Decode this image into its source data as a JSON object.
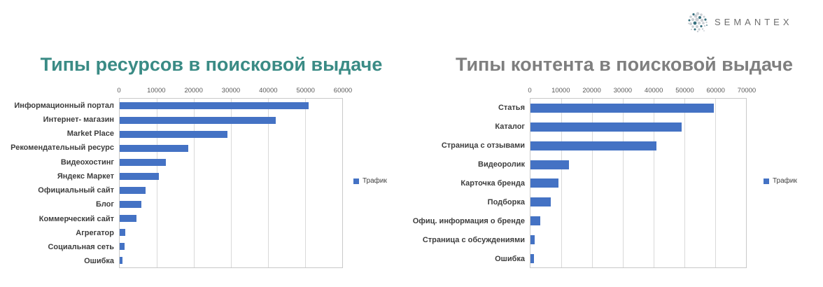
{
  "logo": {
    "text": "SEMANTEX",
    "icon": "dotted-sphere-icon"
  },
  "legend_label": "Трафик",
  "chart_data": [
    {
      "type": "bar",
      "orientation": "horizontal",
      "title": "Типы ресурсов в поисковой выдаче",
      "title_color": "#3a8b85",
      "categories": [
        "Информационный портал",
        "Интернет- магазин",
        "Market Place",
        "Рекомендательный ресурс",
        "Видеохостинг",
        "Яндекс Маркет",
        "Официальный сайт",
        "Блог",
        "Коммерческий сайт",
        "Агрегатор",
        "Социальная сеть",
        "Ошибка"
      ],
      "series": [
        {
          "name": "Трафик",
          "values": [
            51000,
            42000,
            29000,
            18500,
            12500,
            10500,
            7000,
            5800,
            4600,
            1600,
            1400,
            700
          ]
        }
      ],
      "xlim": [
        0,
        60000
      ],
      "xticks": [
        0,
        10000,
        20000,
        30000,
        40000,
        50000,
        60000
      ],
      "bar_color": "#4472c4",
      "grid": true,
      "legend_position": "right"
    },
    {
      "type": "bar",
      "orientation": "horizontal",
      "title": "Типы контента в поисковой выдаче",
      "title_color": "#7f7f7f",
      "categories": [
        "Статья",
        "Каталог",
        "Страница с отзывами",
        "Видеоролик",
        "Карточка бренда",
        "Подборка",
        "Офиц. информация о бренде",
        "Страница с обсуждениями",
        "Ошибка"
      ],
      "series": [
        {
          "name": "Трафик",
          "values": [
            59500,
            49000,
            41000,
            12500,
            9000,
            6700,
            3200,
            1400,
            1100
          ]
        }
      ],
      "xlim": [
        0,
        70000
      ],
      "xticks": [
        0,
        10000,
        20000,
        30000,
        40000,
        50000,
        60000,
        70000
      ],
      "bar_color": "#4472c4",
      "grid": true,
      "legend_position": "right"
    }
  ]
}
